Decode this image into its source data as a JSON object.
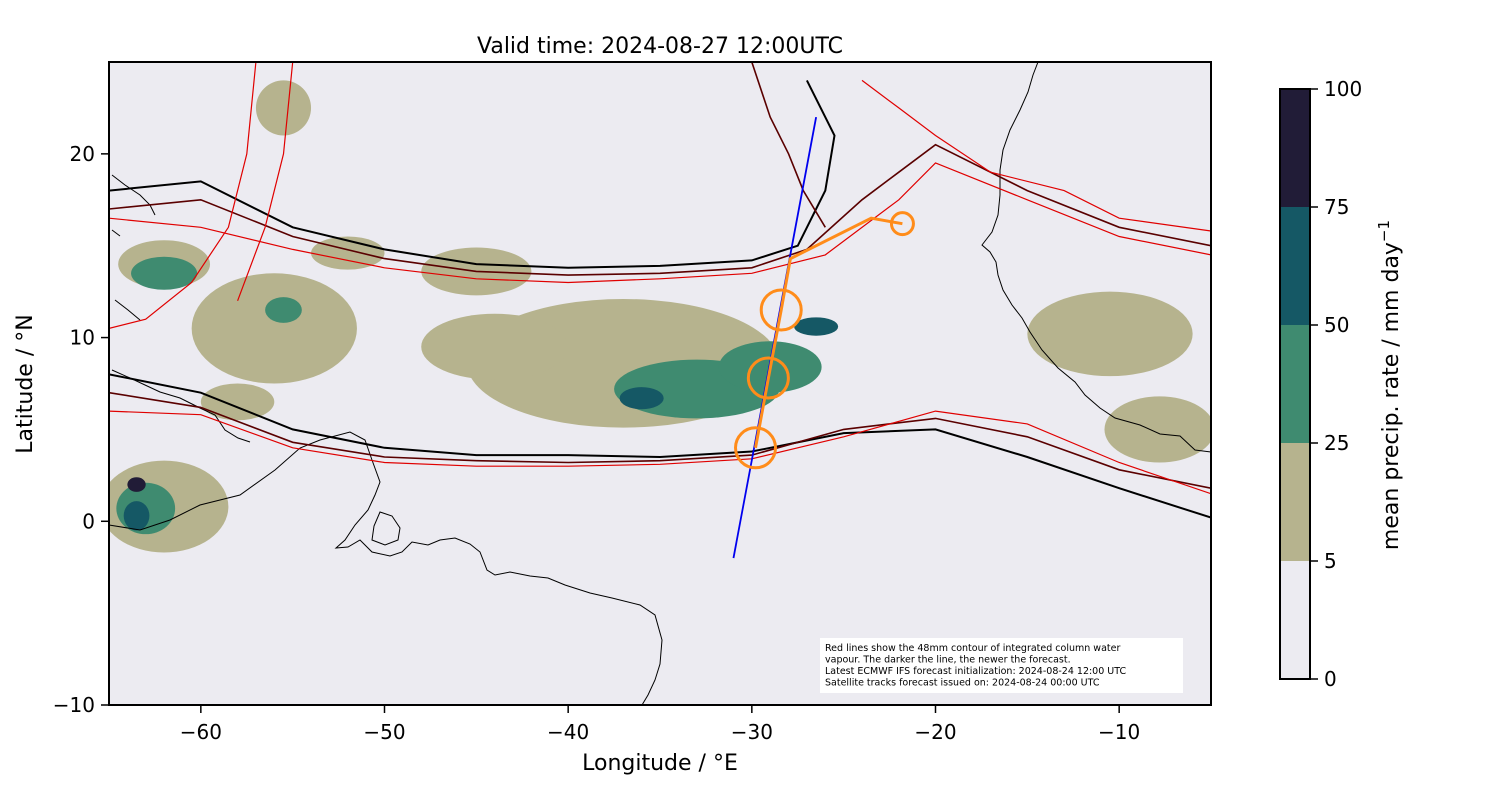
{
  "title": "Valid time: 2024-08-27 12:00UTC",
  "xlabel": "Longitude / °E",
  "ylabel": "Latitude / °N",
  "x_ticks": [
    -60,
    -50,
    -40,
    -30,
    -20,
    -10
  ],
  "y_ticks": [
    -10,
    0,
    10,
    20
  ],
  "x_tick_labels": [
    "−60",
    "−50",
    "−40",
    "−30",
    "−20",
    "−10"
  ],
  "y_tick_labels": [
    "−10",
    "0",
    "10",
    "20"
  ],
  "colorbar": {
    "label": "mean precip. rate / mm day",
    "label_superscript": "−1",
    "ticks": [
      "0",
      "5",
      "25",
      "50",
      "75",
      "100"
    ],
    "colors": [
      "#ecebf1",
      "#b6b38e",
      "#3f8b70",
      "#155865",
      "#211c37"
    ]
  },
  "legend_note": [
    "Red lines show the 48mm contour of integrated column water",
    "vapour. The darker the line, the newer the forecast.",
    "Latest ECMWF IFS forecast initialization: 2024-08-24 12:00 UTC",
    "Satellite tracks forecast issued on: 2024-08-24 00:00 UTC"
  ],
  "colors": {
    "background": "#ecebf1",
    "cwv_contour_newest": "#000000",
    "cwv_contour_mid": "#5a0000",
    "cwv_contour_old": "#e00000",
    "satellite_track": "#0000ee",
    "flight_track": "#ff8c1a",
    "coastline": "#000000"
  },
  "chart_data": {
    "type": "map",
    "xlim": [
      -65,
      -5
    ],
    "ylim": [
      -10,
      25
    ],
    "satellite_track": [
      [
        -31.0,
        -2.0
      ],
      [
        -26.5,
        22.0
      ]
    ],
    "flight_track": [
      [
        -29.8,
        4.0
      ],
      [
        -29.1,
        7.8
      ],
      [
        -28.4,
        11.5
      ],
      [
        -27.9,
        14.3
      ],
      [
        -23.5,
        16.5
      ],
      [
        -21.8,
        16.2
      ]
    ],
    "flight_circles": [
      [
        -29.8,
        4.0
      ],
      [
        -29.1,
        7.8
      ],
      [
        -28.4,
        11.5
      ],
      [
        -21.8,
        16.2
      ]
    ],
    "precip_regions": [
      {
        "level": 1,
        "cx": -37.0,
        "cy": 8.6,
        "rx": 8.5,
        "ry": 3.5
      },
      {
        "level": 1,
        "cx": -44.0,
        "cy": 9.5,
        "rx": 4.0,
        "ry": 1.8
      },
      {
        "level": 1,
        "cx": -56.0,
        "cy": 10.5,
        "rx": 4.5,
        "ry": 3.0
      },
      {
        "level": 1,
        "cx": -62.0,
        "cy": 14.0,
        "rx": 2.5,
        "ry": 1.3
      },
      {
        "level": 1,
        "cx": -45.0,
        "cy": 13.6,
        "rx": 3.0,
        "ry": 1.3
      },
      {
        "level": 1,
        "cx": -52.0,
        "cy": 14.6,
        "rx": 2.0,
        "ry": 0.9
      },
      {
        "level": 1,
        "cx": -62.0,
        "cy": 0.8,
        "rx": 3.5,
        "ry": 2.5
      },
      {
        "level": 1,
        "cx": -10.5,
        "cy": 10.2,
        "rx": 4.5,
        "ry": 2.3
      },
      {
        "level": 1,
        "cx": -7.8,
        "cy": 5.0,
        "rx": 3.0,
        "ry": 1.8
      },
      {
        "level": 1,
        "cx": -55.5,
        "cy": 22.5,
        "rx": 1.5,
        "ry": 1.5
      },
      {
        "level": 1,
        "cx": -58.0,
        "cy": 6.5,
        "rx": 2.0,
        "ry": 1.0
      },
      {
        "level": 2,
        "cx": -33.0,
        "cy": 7.2,
        "rx": 4.5,
        "ry": 1.6
      },
      {
        "level": 2,
        "cx": -29.0,
        "cy": 8.4,
        "rx": 2.8,
        "ry": 1.4
      },
      {
        "level": 2,
        "cx": -62.0,
        "cy": 13.5,
        "rx": 1.8,
        "ry": 0.9
      },
      {
        "level": 2,
        "cx": -63.0,
        "cy": 0.7,
        "rx": 1.6,
        "ry": 1.4
      },
      {
        "level": 2,
        "cx": -55.5,
        "cy": 11.5,
        "rx": 1.0,
        "ry": 0.7
      },
      {
        "level": 3,
        "cx": -36.0,
        "cy": 6.7,
        "rx": 1.2,
        "ry": 0.6
      },
      {
        "level": 3,
        "cx": -26.5,
        "cy": 10.6,
        "rx": 1.2,
        "ry": 0.5
      },
      {
        "level": 3,
        "cx": -63.5,
        "cy": 0.3,
        "rx": 0.7,
        "ry": 0.8
      },
      {
        "level": 4,
        "cx": -63.5,
        "cy": 2.0,
        "rx": 0.5,
        "ry": 0.4
      }
    ],
    "contours": [
      {
        "tone": "newest",
        "points": [
          [
            -65,
            18
          ],
          [
            -60,
            18.5
          ],
          [
            -55,
            16.0
          ],
          [
            -50,
            14.8
          ],
          [
            -45,
            14.0
          ],
          [
            -40,
            13.8
          ],
          [
            -35,
            13.9
          ],
          [
            -30,
            14.2
          ],
          [
            -27.5,
            15.0
          ],
          [
            -26,
            18.0
          ],
          [
            -25.5,
            21.0
          ],
          [
            -27,
            24.0
          ]
        ]
      },
      {
        "tone": "newest",
        "points": [
          [
            -65,
            8.0
          ],
          [
            -60,
            7.0
          ],
          [
            -55,
            5.0
          ],
          [
            -50,
            4.0
          ],
          [
            -45,
            3.6
          ],
          [
            -40,
            3.6
          ],
          [
            -35,
            3.5
          ],
          [
            -30,
            3.8
          ],
          [
            -25,
            4.8
          ],
          [
            -20,
            5.0
          ],
          [
            -15,
            3.5
          ],
          [
            -10,
            1.8
          ],
          [
            -5,
            0.2
          ]
        ]
      },
      {
        "tone": "mid",
        "points": [
          [
            -65,
            17.0
          ],
          [
            -60,
            17.5
          ],
          [
            -55,
            15.5
          ],
          [
            -50,
            14.3
          ],
          [
            -45,
            13.6
          ],
          [
            -40,
            13.4
          ],
          [
            -35,
            13.5
          ],
          [
            -30,
            13.8
          ],
          [
            -27,
            14.8
          ],
          [
            -24,
            17.5
          ],
          [
            -22,
            19.0
          ],
          [
            -20,
            20.5
          ],
          [
            -15,
            18.0
          ],
          [
            -10,
            16.0
          ],
          [
            -5,
            15.0
          ]
        ]
      },
      {
        "tone": "mid",
        "points": [
          [
            -65,
            7.0
          ],
          [
            -60,
            6.2
          ],
          [
            -55,
            4.3
          ],
          [
            -50,
            3.5
          ],
          [
            -45,
            3.3
          ],
          [
            -40,
            3.2
          ],
          [
            -35,
            3.3
          ],
          [
            -30,
            3.6
          ],
          [
            -25,
            5.0
          ],
          [
            -20,
            5.6
          ],
          [
            -15,
            4.6
          ],
          [
            -10,
            2.8
          ],
          [
            -5,
            1.8
          ]
        ]
      },
      {
        "tone": "old",
        "points": [
          [
            -65,
            16.5
          ],
          [
            -60,
            16.0
          ],
          [
            -55,
            14.8
          ],
          [
            -50,
            13.8
          ],
          [
            -45,
            13.2
          ],
          [
            -40,
            13.0
          ],
          [
            -35,
            13.2
          ],
          [
            -30,
            13.5
          ],
          [
            -26,
            14.5
          ],
          [
            -22,
            17.5
          ],
          [
            -20,
            19.5
          ],
          [
            -15,
            17.5
          ],
          [
            -10,
            15.5
          ],
          [
            -5,
            14.5
          ]
        ]
      },
      {
        "tone": "old",
        "points": [
          [
            -65,
            6.0
          ],
          [
            -60,
            5.8
          ],
          [
            -55,
            4.0
          ],
          [
            -50,
            3.2
          ],
          [
            -45,
            3.0
          ],
          [
            -40,
            3.0
          ],
          [
            -35,
            3.1
          ],
          [
            -30,
            3.4
          ],
          [
            -25,
            4.6
          ],
          [
            -20,
            6.0
          ],
          [
            -15,
            5.3
          ],
          [
            -10,
            3.2
          ],
          [
            -5,
            1.5
          ]
        ]
      },
      {
        "tone": "old",
        "points": [
          [
            -57,
            25
          ],
          [
            -57.5,
            20
          ],
          [
            -58.5,
            16
          ],
          [
            -60.5,
            13
          ],
          [
            -63,
            11
          ],
          [
            -65,
            10.5
          ]
        ]
      },
      {
        "tone": "old",
        "points": [
          [
            -55,
            25
          ],
          [
            -55.5,
            20
          ],
          [
            -56.5,
            16
          ],
          [
            -58,
            12
          ]
        ]
      },
      {
        "tone": "mid",
        "points": [
          [
            -30,
            25
          ],
          [
            -29,
            22
          ],
          [
            -28,
            20
          ],
          [
            -27.2,
            18
          ],
          [
            -26,
            16
          ]
        ]
      },
      {
        "tone": "old",
        "points": [
          [
            -24,
            24
          ],
          [
            -22,
            22.5
          ],
          [
            -20,
            21
          ],
          [
            -17,
            19.0
          ],
          [
            -13,
            18.0
          ],
          [
            -10,
            16.5
          ],
          [
            -5,
            15.8
          ]
        ]
      }
    ]
  }
}
